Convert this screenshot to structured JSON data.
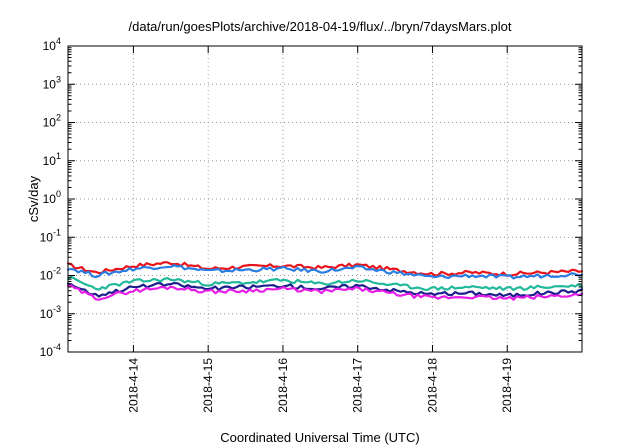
{
  "chart_data": {
    "type": "line",
    "title": "/data/run/goesPlots/archive/2018-04-19/flux/../bryn/7daysMars.plot",
    "xlabel": "Coordinated Universal Time (UTC)",
    "ylabel": "cSv/day",
    "yscale": "log",
    "ylim": [
      0.0001,
      10000
    ],
    "y_ticks": [
      {
        "base": "10",
        "exp": "-4",
        "value": 0.0001
      },
      {
        "base": "10",
        "exp": "-3",
        "value": 0.001
      },
      {
        "base": "10",
        "exp": "-2",
        "value": 0.01
      },
      {
        "base": "10",
        "exp": "-1",
        "value": 0.1
      },
      {
        "base": "10",
        "exp": "0",
        "value": 1
      },
      {
        "base": "10",
        "exp": "1",
        "value": 10
      },
      {
        "base": "10",
        "exp": "2",
        "value": 100
      },
      {
        "base": "10",
        "exp": "3",
        "value": 1000
      },
      {
        "base": "10",
        "exp": "4",
        "value": 10000
      }
    ],
    "xlim": [
      "2018-04-13 03:00",
      "2018-04-20 00:00"
    ],
    "x_ticks": [
      "2018-4-14",
      "2018-4-15",
      "2018-4-16",
      "2018-4-17",
      "2018-4-18",
      "2018-4-19"
    ],
    "x_tick_values": [
      "2018-04-14",
      "2018-04-15",
      "2018-04-16",
      "2018-04-17",
      "2018-04-18",
      "2018-04-19"
    ],
    "grid": true,
    "x": [
      "2018-04-13 03:00",
      "2018-04-13 12:00",
      "2018-04-14 00:00",
      "2018-04-14 12:00",
      "2018-04-15 00:00",
      "2018-04-15 12:00",
      "2018-04-16 00:00",
      "2018-04-16 12:00",
      "2018-04-17 00:00",
      "2018-04-17 12:00",
      "2018-04-18 00:00",
      "2018-04-18 12:00",
      "2018-04-19 00:00",
      "2018-04-19 12:00",
      "2018-04-20 00:00"
    ],
    "series": [
      {
        "color": "#e8141c",
        "values": [
          0.019,
          0.012,
          0.018,
          0.022,
          0.015,
          0.017,
          0.018,
          0.016,
          0.019,
          0.014,
          0.011,
          0.012,
          0.011,
          0.012,
          0.013
        ]
      },
      {
        "color": "#2a7de1",
        "values": [
          0.016,
          0.01,
          0.015,
          0.018,
          0.013,
          0.014,
          0.015,
          0.013,
          0.016,
          0.012,
          0.009,
          0.01,
          0.009,
          0.01,
          0.011
        ]
      },
      {
        "color": "#22b89a",
        "values": [
          0.009,
          0.0045,
          0.007,
          0.008,
          0.006,
          0.0065,
          0.0075,
          0.006,
          0.0075,
          0.0055,
          0.0045,
          0.005,
          0.0045,
          0.005,
          0.0055
        ]
      },
      {
        "color": "#1b1e8c",
        "values": [
          0.0065,
          0.003,
          0.005,
          0.006,
          0.0045,
          0.005,
          0.0055,
          0.0045,
          0.0055,
          0.004,
          0.0032,
          0.0035,
          0.003,
          0.0035,
          0.004
        ]
      },
      {
        "color": "#e61ee6",
        "values": [
          0.0055,
          0.0025,
          0.004,
          0.005,
          0.0038,
          0.004,
          0.0045,
          0.0038,
          0.0045,
          0.0033,
          0.0026,
          0.0028,
          0.0025,
          0.0028,
          0.0032
        ]
      }
    ]
  }
}
